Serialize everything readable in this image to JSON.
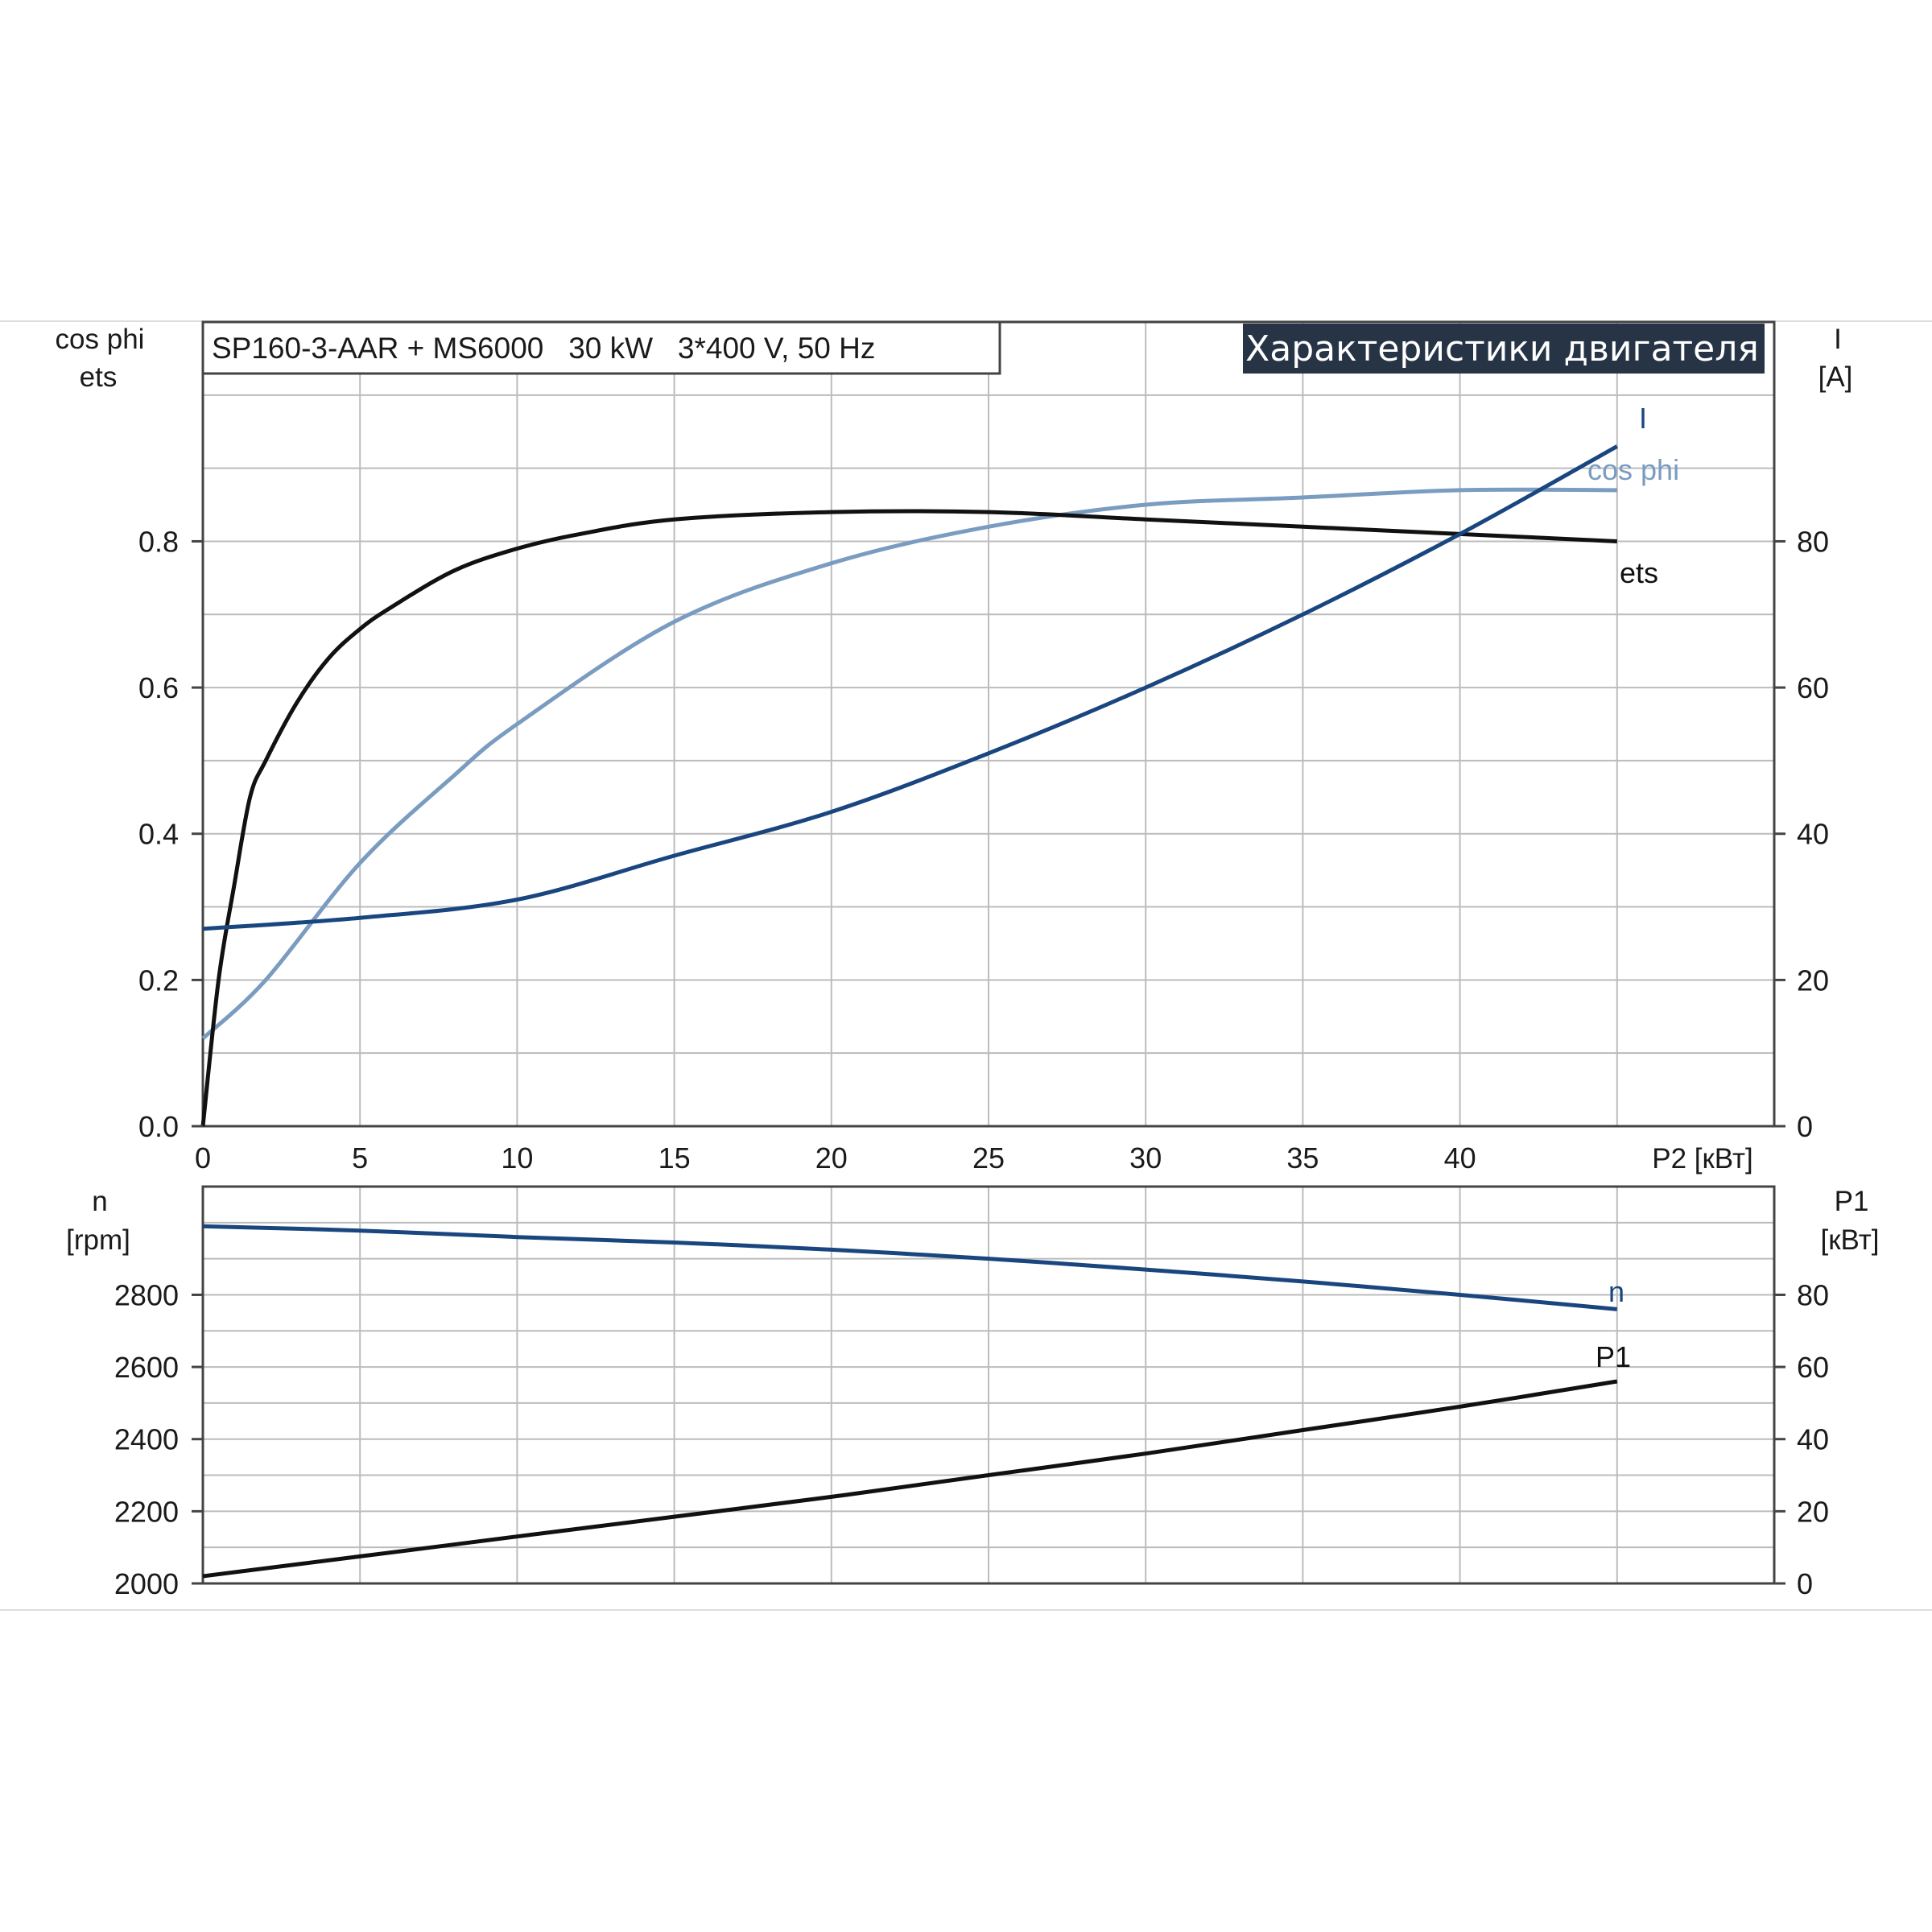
{
  "header": {
    "model": "SP160-3-AAR + MS6000   30 kW   3*400 V, 50 Hz",
    "banner": "Характеристики двигателя"
  },
  "top_chart": {
    "left_axis": {
      "title_line1": "cos phi",
      "title_line2": "ets",
      "ticks": [
        "0.0",
        "0.2",
        "0.4",
        "0.6",
        "0.8"
      ]
    },
    "right_axis": {
      "title_line1": "I",
      "title_line2": "[A]",
      "ticks": [
        "0",
        "20",
        "40",
        "60",
        "80"
      ]
    },
    "x_axis": {
      "title": "P2 [кВт]",
      "ticks": [
        "0",
        "5",
        "10",
        "15",
        "20",
        "25",
        "30",
        "35",
        "40"
      ]
    },
    "labels": {
      "I": "I",
      "cosphi": "cos phi",
      "ets": "ets"
    }
  },
  "bottom_chart": {
    "left_axis": {
      "title_line1": "n",
      "title_line2": "[rpm]",
      "ticks": [
        "2000",
        "2200",
        "2400",
        "2600",
        "2800"
      ]
    },
    "right_axis": {
      "title_line1": "P1",
      "title_line2": "[кВт]",
      "ticks": [
        "0",
        "20",
        "40",
        "60",
        "80"
      ]
    },
    "labels": {
      "n": "n",
      "P1": "P1"
    }
  },
  "colors": {
    "ets": "#111111",
    "cosphi": "#7a9cc0",
    "I": "#1a4680",
    "n": "#1a4680",
    "P1": "#111111",
    "banner_bg": "#263446",
    "grid": "#bcbcbc"
  },
  "chart_data": [
    {
      "type": "line",
      "title": "Характеристики двигателя",
      "xlabel": "P2 [кВт]",
      "ylabel": "cos phi / ets",
      "y2label": "I [A]",
      "xlim": [
        0,
        50
      ],
      "ylim": [
        0,
        1.1
      ],
      "y2lim": [
        0,
        110
      ],
      "series": [
        {
          "name": "ets",
          "axis": "left",
          "x": [
            0,
            0.5,
            1,
            1.5,
            2,
            3,
            4,
            5,
            6,
            8,
            10,
            12,
            15,
            20,
            25,
            30,
            35,
            40,
            45
          ],
          "values": [
            0.0,
            0.2,
            0.33,
            0.45,
            0.5,
            0.58,
            0.64,
            0.68,
            0.71,
            0.76,
            0.79,
            0.81,
            0.83,
            0.84,
            0.84,
            0.83,
            0.82,
            0.81,
            0.8
          ]
        },
        {
          "name": "cos phi",
          "axis": "left",
          "x": [
            0,
            2,
            5,
            8,
            10,
            15,
            20,
            25,
            30,
            35,
            40,
            45
          ],
          "values": [
            0.12,
            0.2,
            0.36,
            0.48,
            0.55,
            0.69,
            0.77,
            0.82,
            0.85,
            0.86,
            0.87,
            0.87
          ]
        },
        {
          "name": "I",
          "axis": "right",
          "x": [
            0,
            5,
            10,
            15,
            20,
            25,
            30,
            35,
            40,
            45
          ],
          "values": [
            27,
            28.5,
            31,
            37,
            43,
            51,
            60,
            70,
            81,
            93
          ]
        }
      ]
    },
    {
      "type": "line",
      "xlabel": "P2 [кВт]",
      "ylabel": "n [rpm]",
      "y2label": "P1 [кВт]",
      "xlim": [
        0,
        50
      ],
      "ylim": [
        2000,
        3100
      ],
      "y2lim": [
        0,
        110
      ],
      "series": [
        {
          "name": "n",
          "axis": "left",
          "x": [
            0,
            5,
            10,
            15,
            20,
            25,
            30,
            35,
            40,
            45
          ],
          "values": [
            2990,
            2978,
            2960,
            2945,
            2925,
            2900,
            2870,
            2837,
            2800,
            2760
          ]
        },
        {
          "name": "P1",
          "axis": "right",
          "x": [
            0,
            5,
            10,
            15,
            20,
            25,
            30,
            35,
            40,
            45
          ],
          "values": [
            2,
            7.5,
            13,
            18.5,
            24,
            30,
            36,
            42.5,
            49,
            56
          ]
        }
      ]
    }
  ]
}
